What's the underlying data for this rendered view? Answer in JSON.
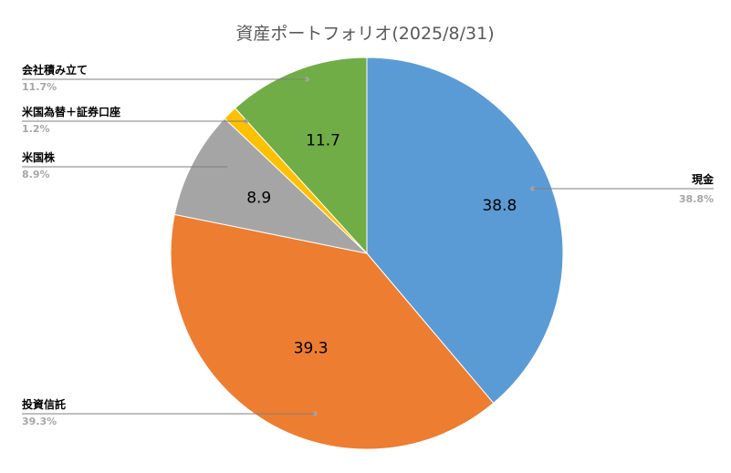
{
  "chart_data": {
    "type": "pie",
    "title": "資産ポートフォリオ(2025/8/31)",
    "slices": [
      {
        "name": "現金",
        "value": 38.8,
        "label": "38.8",
        "percent_label": "38.8%",
        "color": "#5b9bd5"
      },
      {
        "name": "投資信託",
        "value": 39.3,
        "label": "39.3",
        "percent_label": "39.3%",
        "color": "#ed7d31"
      },
      {
        "name": "米国株",
        "value": 8.9,
        "label": "8.9",
        "percent_label": "8.9%",
        "color": "#a5a5a5"
      },
      {
        "name": "米国為替＋証券口座",
        "value": 1.2,
        "label": "",
        "percent_label": "1.2%",
        "color": "#ffc000"
      },
      {
        "name": "会社積み立て",
        "value": 11.7,
        "label": "11.7",
        "percent_label": "11.7%",
        "color": "#70ad47"
      }
    ],
    "start": "12 o'clock",
    "direction": "clockwise",
    "legend": "none",
    "callouts": "outside with leader lines"
  }
}
